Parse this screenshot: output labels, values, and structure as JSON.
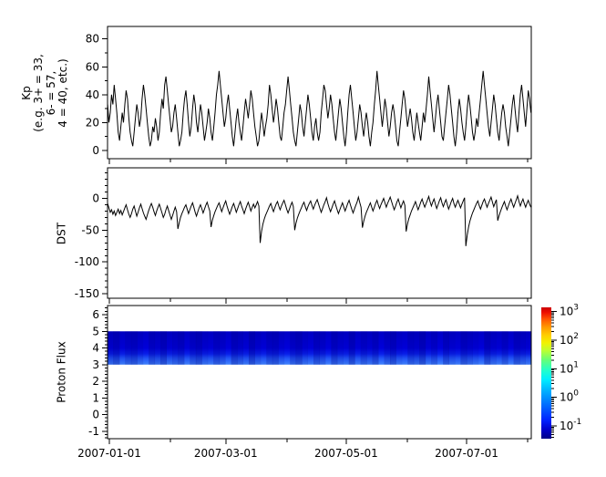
{
  "figure": {
    "background": "#ffffff",
    "line_color": "#000000",
    "stripe_color": "#000080"
  },
  "x_axis": {
    "tick_labels": [
      "2007-01-01",
      "2007-03-01",
      "2007-05-01",
      "2007-07-01"
    ],
    "tick_days": [
      0,
      59,
      120,
      181
    ],
    "minor_tick_days": [
      31,
      90,
      151,
      212
    ],
    "range_days": [
      -1,
      214
    ]
  },
  "chart_data": [
    {
      "id": "kp",
      "type": "line",
      "ylabel_lines": [
        "Kp",
        "(e.g. 3+ = 33,",
        "6- = 57,",
        "4 = 40, etc.)"
      ],
      "ylim": [
        -6,
        89
      ],
      "yticks_major": [
        0,
        20,
        40,
        60,
        80
      ],
      "yticks_minor": [
        10,
        30,
        50,
        70
      ],
      "values": [
        33,
        20,
        27,
        40,
        33,
        47,
        37,
        27,
        13,
        7,
        17,
        27,
        20,
        33,
        43,
        37,
        23,
        13,
        7,
        3,
        13,
        23,
        33,
        27,
        17,
        23,
        37,
        47,
        40,
        30,
        20,
        10,
        3,
        7,
        17,
        13,
        23,
        17,
        7,
        13,
        27,
        37,
        30,
        47,
        53,
        43,
        33,
        23,
        13,
        17,
        27,
        33,
        23,
        13,
        3,
        7,
        13,
        27,
        37,
        43,
        33,
        20,
        10,
        17,
        30,
        40,
        33,
        20,
        13,
        23,
        33,
        27,
        17,
        7,
        13,
        20,
        30,
        23,
        13,
        7,
        17,
        27,
        40,
        47,
        57,
        47,
        37,
        27,
        17,
        23,
        33,
        40,
        30,
        20,
        10,
        3,
        13,
        23,
        30,
        20,
        13,
        7,
        17,
        27,
        37,
        30,
        23,
        33,
        43,
        37,
        27,
        17,
        10,
        3,
        7,
        17,
        27,
        20,
        10,
        17,
        23,
        33,
        47,
        40,
        30,
        20,
        27,
        37,
        30,
        20,
        10,
        7,
        17,
        27,
        33,
        43,
        53,
        43,
        33,
        23,
        13,
        7,
        3,
        13,
        23,
        33,
        27,
        17,
        10,
        20,
        30,
        40,
        33,
        23,
        13,
        7,
        17,
        23,
        13,
        7,
        13,
        27,
        37,
        47,
        43,
        33,
        23,
        30,
        40,
        33,
        23,
        13,
        7,
        17,
        27,
        37,
        30,
        20,
        10,
        3,
        13,
        27,
        40,
        47,
        37,
        27,
        17,
        7,
        13,
        23,
        33,
        27,
        17,
        10,
        20,
        27,
        20,
        10,
        3,
        13,
        20,
        33,
        43,
        57,
        47,
        37,
        27,
        17,
        27,
        37,
        30,
        20,
        10,
        17,
        27,
        33,
        27,
        17,
        7,
        3,
        13,
        23,
        33,
        43,
        37,
        27,
        17,
        23,
        30,
        23,
        13,
        7,
        17,
        27,
        20,
        13,
        7,
        17,
        27,
        20,
        30,
        40,
        53,
        43,
        33,
        23,
        13,
        23,
        33,
        40,
        30,
        20,
        10,
        7,
        17,
        27,
        37,
        47,
        40,
        30,
        20,
        10,
        3,
        13,
        27,
        37,
        30,
        20,
        13,
        7,
        17,
        30,
        40,
        33,
        23,
        13,
        7,
        13,
        23,
        17,
        27,
        37,
        47,
        57,
        47,
        37,
        27,
        17,
        10,
        20,
        30,
        40,
        33,
        23,
        13,
        7,
        17,
        27,
        33,
        27,
        17,
        10,
        3,
        13,
        23,
        33,
        40,
        30,
        20,
        13,
        27,
        40,
        47,
        37,
        27,
        17,
        30,
        43,
        37,
        27
      ]
    },
    {
      "id": "dst",
      "type": "line",
      "ylabel": "DST",
      "ylim": [
        48,
        -157
      ],
      "yticks_major": [
        0,
        -50,
        -100,
        -150
      ],
      "yticks_minor_step": 10,
      "values": [
        -8,
        -15,
        -22,
        -18,
        -25,
        -20,
        -27,
        -22,
        -17,
        -24,
        -19,
        -26,
        -21,
        -15,
        -10,
        -18,
        -25,
        -30,
        -24,
        -17,
        -12,
        -20,
        -28,
        -22,
        -15,
        -9,
        -16,
        -23,
        -28,
        -33,
        -26,
        -19,
        -13,
        -8,
        -14,
        -21,
        -27,
        -20,
        -14,
        -9,
        -16,
        -23,
        -30,
        -25,
        -18,
        -12,
        -19,
        -26,
        -33,
        -27,
        -20,
        -14,
        -21,
        -48,
        -38,
        -30,
        -24,
        -19,
        -14,
        -10,
        -17,
        -24,
        -18,
        -12,
        -7,
        -14,
        -22,
        -28,
        -21,
        -15,
        -10,
        -16,
        -23,
        -17,
        -11,
        -6,
        -13,
        -20,
        -45,
        -34,
        -27,
        -21,
        -16,
        -11,
        -7,
        -14,
        -21,
        -15,
        -9,
        -4,
        -12,
        -19,
        -25,
        -19,
        -13,
        -8,
        -15,
        -22,
        -16,
        -10,
        -5,
        -12,
        -18,
        -24,
        -17,
        -11,
        -6,
        -13,
        -20,
        -14,
        -9,
        -15,
        -10,
        -5,
        -12,
        -70,
        -52,
        -41,
        -33,
        -27,
        -22,
        -17,
        -12,
        -8,
        -15,
        -21,
        -15,
        -9,
        -5,
        -12,
        -18,
        -12,
        -7,
        -3,
        -10,
        -17,
        -23,
        -17,
        -11,
        -6,
        -13,
        -50,
        -39,
        -31,
        -25,
        -20,
        -15,
        -10,
        -6,
        -13,
        -19,
        -13,
        -8,
        -4,
        -11,
        -17,
        -11,
        -6,
        -2,
        -9,
        -16,
        -22,
        -16,
        -10,
        -5,
        1,
        -8,
        -15,
        -21,
        -15,
        -9,
        -4,
        -11,
        -18,
        -24,
        -18,
        -12,
        -7,
        -14,
        -20,
        -14,
        -8,
        -3,
        -10,
        -17,
        -23,
        -17,
        -11,
        -6,
        2,
        -6,
        -14,
        -46,
        -36,
        -28,
        -22,
        -17,
        -12,
        -7,
        -14,
        -20,
        -14,
        -8,
        -3,
        -10,
        -16,
        -10,
        -5,
        0,
        -7,
        -14,
        -8,
        -3,
        2,
        -5,
        -12,
        -18,
        -12,
        -6,
        -1,
        -8,
        -15,
        -9,
        -4,
        -11,
        -52,
        -40,
        -32,
        -26,
        -20,
        -15,
        -10,
        -5,
        -12,
        -18,
        -12,
        -6,
        -1,
        -8,
        -14,
        -8,
        -3,
        3,
        -5,
        -12,
        -6,
        -1,
        -9,
        -16,
        -10,
        -4,
        1,
        -7,
        -13,
        -7,
        -2,
        -10,
        -17,
        -11,
        -5,
        0,
        -8,
        -14,
        -8,
        -3,
        -9,
        -15,
        -9,
        -4,
        1,
        -75,
        -58,
        -45,
        -36,
        -29,
        -23,
        -18,
        -13,
        -8,
        -4,
        -11,
        -17,
        -11,
        -5,
        -1,
        -8,
        -14,
        -8,
        -3,
        2,
        -6,
        -13,
        -7,
        -2,
        -35,
        -27,
        -21,
        -15,
        -10,
        -5,
        -12,
        -18,
        -12,
        -6,
        -1,
        -8,
        -14,
        -8,
        -2,
        4,
        -5,
        -12,
        -6,
        -1,
        -8,
        -14,
        -8,
        -3,
        -9,
        -14
      ]
    },
    {
      "id": "proton_flux",
      "type": "heatmap",
      "ylabel": "Proton Flux",
      "ylim": [
        6.55,
        -1.45
      ],
      "yticks_major": [
        6,
        5,
        4,
        3,
        2,
        1,
        0,
        -1
      ],
      "yticks_minor_step": 0.2,
      "band_y_range": [
        3,
        5
      ],
      "band_gradient": [
        {
          "pos": 0.0,
          "color": "#0000c8"
        },
        {
          "pos": 0.5,
          "color": "#0000dd"
        },
        {
          "pos": 0.68,
          "color": "#0a22ee"
        },
        {
          "pos": 0.8,
          "color": "#2255fa"
        },
        {
          "pos": 0.9,
          "color": "#3370ff"
        },
        {
          "pos": 1.0,
          "color": "#4488ff"
        }
      ],
      "log_flux_columns": [
        -0.9,
        -1.1,
        -0.7,
        -0.95,
        -1.05,
        -0.8,
        -0.62,
        -1.0,
        -0.85,
        -1.12,
        -0.75,
        -0.9,
        -1.05,
        -0.65,
        -0.95,
        -1.1,
        -0.8,
        -0.7,
        -1.0,
        -0.88,
        -0.6,
        -1.08,
        -0.92,
        -0.72,
        -1.12,
        -0.82,
        -0.66,
        -0.98,
        -1.05,
        -0.76,
        -0.6,
        -0.94,
        -1.1,
        -0.8,
        -0.68,
        -1.02,
        -0.9,
        -0.62,
        -1.06,
        -0.84,
        -0.72,
        -1.1,
        -0.66,
        -0.96,
        -0.78,
        -1.04,
        -0.6,
        -0.9,
        -1.08,
        -0.74,
        -0.64,
        -0.98,
        -0.86,
        -1.12,
        -0.7,
        -0.92,
        -0.6,
        -1.02,
        -0.8,
        -0.68,
        -1.06,
        -0.9,
        -0.76,
        -0.62,
        -1.1,
        -0.84,
        -0.7,
        -0.98,
        -0.64,
        -1.04,
        -0.88,
        -0.74
      ],
      "colorbar": {
        "scale": "log",
        "tick_exponents": [
          3,
          2,
          1,
          0,
          -1
        ],
        "range_log10": [
          3.15,
          -1.45
        ],
        "gradient": [
          {
            "pos": 0.0,
            "color": "#cc0000"
          },
          {
            "pos": 0.04,
            "color": "#ee1100"
          },
          {
            "pos": 0.09,
            "color": "#ff5500"
          },
          {
            "pos": 0.15,
            "color": "#ff9900"
          },
          {
            "pos": 0.21,
            "color": "#ffcc00"
          },
          {
            "pos": 0.27,
            "color": "#f2f200"
          },
          {
            "pos": 0.33,
            "color": "#bbff33"
          },
          {
            "pos": 0.4,
            "color": "#66ff77"
          },
          {
            "pos": 0.48,
            "color": "#22ffcc"
          },
          {
            "pos": 0.55,
            "color": "#00eeff"
          },
          {
            "pos": 0.62,
            "color": "#00bbff"
          },
          {
            "pos": 0.7,
            "color": "#0088ff"
          },
          {
            "pos": 0.78,
            "color": "#0055ff"
          },
          {
            "pos": 0.86,
            "color": "#0022ff"
          },
          {
            "pos": 0.93,
            "color": "#0000cc"
          },
          {
            "pos": 1.0,
            "color": "#000088"
          }
        ]
      }
    }
  ]
}
